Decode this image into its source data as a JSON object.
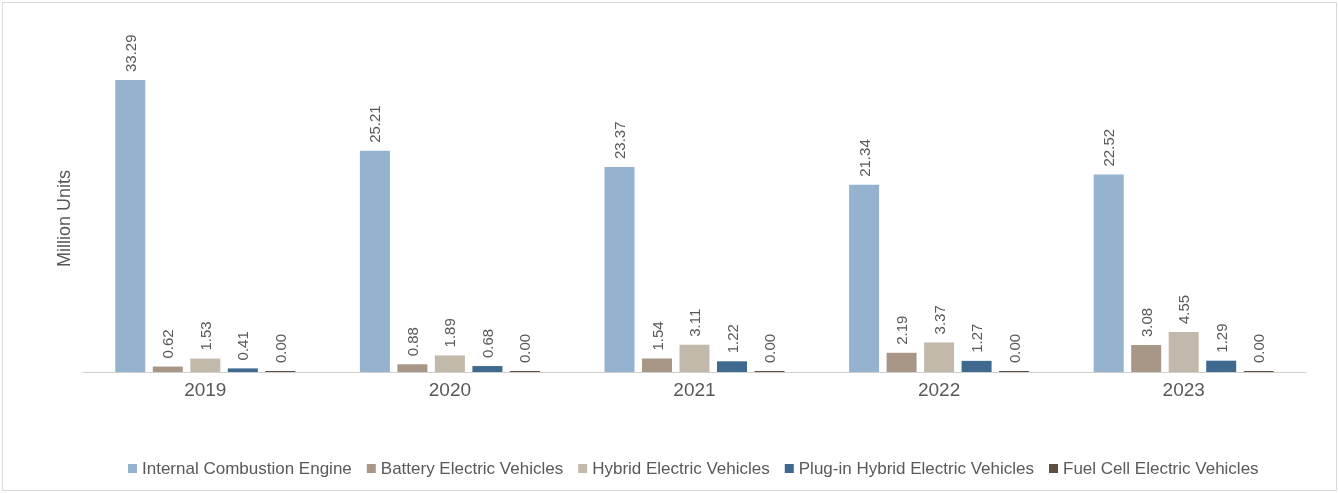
{
  "chart_data": {
    "type": "bar",
    "ylabel": "Million Units",
    "categories": [
      "2019",
      "2020",
      "2021",
      "2022",
      "2023"
    ],
    "series": [
      {
        "name": "Internal Combustion Engine",
        "color": "#95b3cf",
        "values": [
          33.29,
          25.21,
          23.37,
          21.34,
          22.52
        ],
        "value_labels": [
          "33.29",
          "25.21",
          "23.37",
          "21.34",
          "22.52"
        ]
      },
      {
        "name": "Battery Electric Vehicles",
        "color": "#a89786",
        "values": [
          0.62,
          0.88,
          1.54,
          2.19,
          3.08
        ],
        "value_labels": [
          "0.62",
          "0.88",
          "1.54",
          "2.19",
          "3.08"
        ]
      },
      {
        "name": "Hybrid Electric Vehicles",
        "color": "#c2b9aa",
        "values": [
          1.53,
          1.89,
          3.11,
          3.37,
          4.55
        ],
        "value_labels": [
          "1.53",
          "1.89",
          "3.11",
          "3.37",
          "4.55"
        ]
      },
      {
        "name": "Plug-in Hybrid Electric Vehicles",
        "color": "#40698f",
        "values": [
          0.41,
          0.68,
          1.22,
          1.27,
          1.29
        ],
        "value_labels": [
          "0.41",
          "0.68",
          "1.22",
          "1.27",
          "1.29"
        ]
      },
      {
        "name": "Fuel Cell Electric Vehicles",
        "color": "#5e4f40",
        "values": [
          0,
          0,
          0,
          0,
          0
        ],
        "value_labels": [
          "0.00",
          "0.00",
          "0.00",
          "0.00",
          "0.00"
        ]
      }
    ],
    "legend": "bottom",
    "grid": false
  }
}
